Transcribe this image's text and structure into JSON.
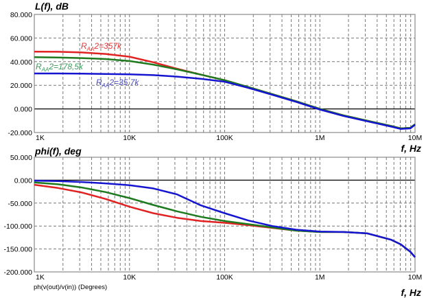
{
  "chart_data": [
    {
      "type": "line",
      "title": "L(f), dB",
      "xlabel": "f, Hz",
      "xscale": "log",
      "xlim": [
        1000,
        10000000
      ],
      "ylim": [
        -20,
        80
      ],
      "grid": true,
      "yticks": [
        "80.000",
        "60.000",
        "40.000",
        "20.000",
        "0.000",
        "-20.000"
      ],
      "ytick_values": [
        80,
        60,
        40,
        20,
        0,
        -20
      ],
      "xticks": [
        "1K",
        "10K",
        "100K",
        "1M",
        "10M"
      ],
      "log10_f": [
        3,
        3.25,
        3.5,
        3.75,
        4,
        4.25,
        4.5,
        4.75,
        5,
        5.25,
        5.5,
        5.75,
        6,
        6.25,
        6.5,
        6.75,
        6.85,
        6.95,
        7
      ],
      "series": [
        {
          "name": "RAA2=357k",
          "label_main": "R",
          "label_sub": "AA",
          "label_rest": "2=357k",
          "color": "#e02222",
          "label_color": "#e03a3a",
          "values": [
            48.5,
            48.4,
            47.8,
            46.5,
            44.2,
            39.5,
            34,
            29,
            24.3,
            18.5,
            12.5,
            6.5,
            0,
            -5.5,
            -10,
            -14.5,
            -16.5,
            -16,
            -13
          ]
        },
        {
          "name": "RAA2=178,5k",
          "label_main": "R",
          "label_sub": "AA",
          "label_rest": "2=178,5k",
          "color": "#1e7a1e",
          "label_color": "#3a9a5a",
          "values": [
            43.8,
            43.5,
            43,
            42.2,
            40.5,
            37.5,
            33.5,
            29,
            24.3,
            18.5,
            12.5,
            6.5,
            0,
            -5.5,
            -10,
            -14.5,
            -16.5,
            -16,
            -13
          ]
        },
        {
          "name": "RAA2=35,7k",
          "label_main": "R",
          "label_sub": "AA",
          "label_rest": "2=35,7k",
          "color": "#1515d0",
          "label_color": "#4a4ac0",
          "values": [
            30,
            30,
            29.8,
            29.6,
            29.3,
            28.6,
            27.3,
            25.5,
            23,
            17.8,
            12,
            6,
            -0.5,
            -6,
            -10.5,
            -15,
            -17,
            -16.5,
            -13.5
          ]
        }
      ]
    },
    {
      "type": "line",
      "title": "phi(f), deg",
      "xlabel": "f, Hz",
      "footer": "ph(v(out)/v(in)) (Degrees)",
      "xscale": "log",
      "xlim": [
        1000,
        10000000
      ],
      "ylim": [
        -200,
        50
      ],
      "grid": true,
      "yticks": [
        "50.000",
        "0.000",
        "-50.000",
        "-100.000",
        "-150.000",
        "-200.000"
      ],
      "ytick_values": [
        50,
        0,
        -50,
        -100,
        -150,
        -200
      ],
      "xticks": [
        "1K",
        "10K",
        "100K",
        "1M",
        "10M"
      ],
      "log10_f": [
        3,
        3.25,
        3.5,
        3.75,
        4,
        4.25,
        4.5,
        4.75,
        5,
        5.25,
        5.5,
        5.75,
        6,
        6.25,
        6.5,
        6.75,
        6.85,
        6.95,
        7
      ],
      "series": [
        {
          "name": "RAA2=357k",
          "color": "#e02222",
          "values": [
            -10,
            -17,
            -27,
            -41,
            -58,
            -72,
            -82,
            -89,
            -93,
            -98,
            -104,
            -110,
            -113,
            -113,
            -116,
            -130,
            -140,
            -156,
            -168
          ]
        },
        {
          "name": "RAA2=178,5k",
          "color": "#1e7a1e",
          "values": [
            -5,
            -9,
            -16,
            -26,
            -39,
            -54,
            -68,
            -80,
            -89,
            -96,
            -103,
            -110,
            -113,
            -113,
            -116,
            -130,
            -140,
            -156,
            -168
          ]
        },
        {
          "name": "RAA2=35,7k",
          "color": "#1515d0",
          "values": [
            -1,
            -2,
            -4,
            -7,
            -11,
            -18,
            -31,
            -55,
            -72,
            -88,
            -100,
            -108,
            -112,
            -113,
            -116,
            -130,
            -140,
            -156,
            -168
          ]
        }
      ]
    }
  ]
}
